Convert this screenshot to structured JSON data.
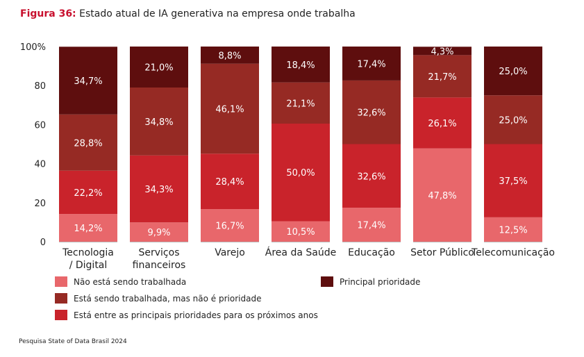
{
  "title": {
    "figure_label": "Figura 36:",
    "text": "Estado atual de IA generativa na empresa onde trabalha"
  },
  "chart_data": {
    "type": "bar",
    "stacked": true,
    "title": "Estado atual de IA generativa na empresa onde trabalha",
    "categories": [
      "Tecnologia / Digital",
      "Serviços financeiros",
      "Varejo",
      "Área da Saúde",
      "Educação",
      "Setor Público",
      "Telecomunicação"
    ],
    "category_lines": [
      [
        "Tecnologia",
        "/ Digital"
      ],
      [
        "Serviços",
        "financeiros"
      ],
      [
        "Varejo"
      ],
      [
        "Área da Saúde"
      ],
      [
        "Educação"
      ],
      [
        "Setor Público"
      ],
      [
        "Telecomunicação"
      ]
    ],
    "ylim": [
      0,
      100
    ],
    "yticks": [
      0,
      20,
      40,
      60,
      80,
      100
    ],
    "ytick_labels": [
      "0",
      "20",
      "40",
      "60",
      "80",
      "100%"
    ],
    "series": [
      {
        "name": "Não está sendo trabalhada",
        "color": "#e8676b",
        "values": [
          14.2,
          9.9,
          16.7,
          10.5,
          17.4,
          47.8,
          12.5
        ],
        "labels": [
          "14,2%",
          "9,9%",
          "16,7%",
          "10,5%",
          "17,4%",
          "47,8%",
          "12,5%"
        ]
      },
      {
        "name": "Está entre as principais prioridades para os próximos anos",
        "color": "#c9232b",
        "values": [
          22.2,
          34.3,
          28.4,
          50.0,
          32.6,
          26.1,
          37.5
        ],
        "labels": [
          "22,2%",
          "34,3%",
          "28,4%",
          "50,0%",
          "32,6%",
          "26,1%",
          "37,5%"
        ]
      },
      {
        "name": "Está sendo trabalhada, mas não é prioridade",
        "color": "#962a24",
        "values": [
          28.8,
          34.8,
          46.1,
          21.1,
          32.6,
          21.7,
          25.0
        ],
        "labels": [
          "28,8%",
          "34,8%",
          "46,1%",
          "21,1%",
          "32,6%",
          "21,7%",
          "25,0%"
        ]
      },
      {
        "name": "Principal prioridade",
        "color": "#5e0e0e",
        "values": [
          34.7,
          21.0,
          8.8,
          18.4,
          17.4,
          4.3,
          25.0
        ],
        "labels": [
          "34,7%",
          "21,0%",
          "8,8%",
          "18,4%",
          "17,4%",
          "4,3%",
          "25,0%"
        ]
      }
    ],
    "legend": [
      {
        "label": "Não está sendo trabalhada",
        "color": "#e8676b"
      },
      {
        "label": "Principal prioridade",
        "color": "#5e0e0e"
      },
      {
        "label": "Está sendo trabalhada, mas não é prioridade",
        "color": "#962a24"
      },
      {
        "label": "Está entre as principais prioridades para os próximos anos",
        "color": "#c9232b"
      }
    ]
  },
  "source": "Pesquisa State of Data Brasil 2024"
}
